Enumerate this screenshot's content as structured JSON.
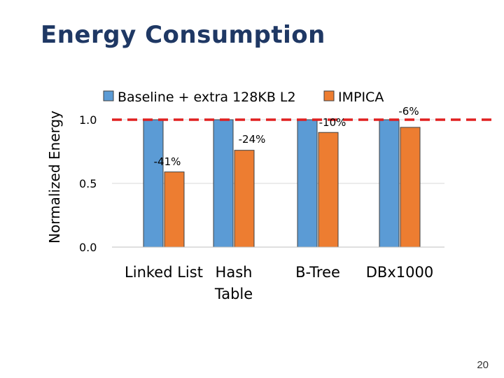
{
  "slide": {
    "title": "Energy Consumption",
    "page_number": "20"
  },
  "colors": {
    "baseline": "#5b9bd5",
    "impica": "#ed7d31",
    "reference_line": "#e02020",
    "grid": "#d9d9d9",
    "text": "#000000"
  },
  "chart_data": {
    "type": "bar",
    "title": "",
    "xlabel": "",
    "ylabel": "Normalized Energy",
    "ylim": [
      0,
      1.0
    ],
    "yticks": [
      0.0,
      0.5,
      1.0
    ],
    "ytick_labels": [
      "0.0",
      "0.5",
      "1.0"
    ],
    "categories": [
      "Linked List",
      "Hash Table",
      "B-Tree",
      "DBx1000"
    ],
    "series": [
      {
        "name": "Baseline + extra 128KB L2",
        "values": [
          1.0,
          1.0,
          1.0,
          1.0
        ]
      },
      {
        "name": "IMPICA",
        "values": [
          0.59,
          0.76,
          0.9,
          0.94
        ]
      }
    ],
    "annotations": [
      "-41%",
      "-24%",
      "-10%",
      "-6%"
    ],
    "reference_line": 1.0,
    "legend": "top",
    "grid": true
  }
}
